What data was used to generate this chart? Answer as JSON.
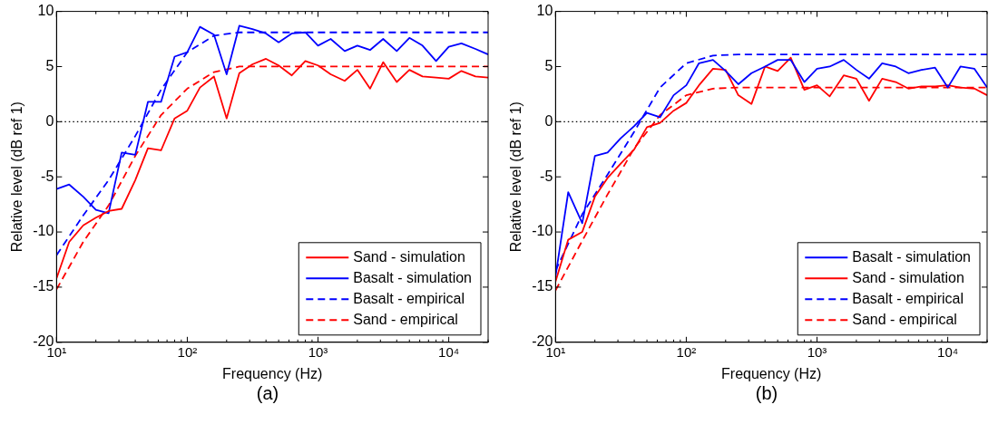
{
  "chart_data": [
    {
      "type": "line",
      "xlabel": "Frequency (Hz)",
      "ylabel": "Relative level (dB ref 1)",
      "annotations": [
        "(a)"
      ],
      "log": "x",
      "legend": "bottom right",
      "grid": false,
      "marker": "none",
      "xlim": [
        10,
        20000
      ],
      "ylim": [
        -20,
        10
      ],
      "yticks": [
        -20,
        -15,
        -10,
        -5,
        0,
        5,
        10
      ],
      "xticks": [
        {
          "value": 10,
          "label": "10¹"
        },
        {
          "value": 20,
          "label": null
        },
        {
          "value": 30,
          "label": null
        },
        {
          "value": 40,
          "label": null
        },
        {
          "value": 50,
          "label": null
        },
        {
          "value": 60,
          "label": null
        },
        {
          "value": 70,
          "label": null
        },
        {
          "value": 80,
          "label": null
        },
        {
          "value": 90,
          "label": null
        },
        {
          "value": 100,
          "label": "10²"
        },
        {
          "value": 200,
          "label": null
        },
        {
          "value": 300,
          "label": null
        },
        {
          "value": 400,
          "label": null
        },
        {
          "value": 500,
          "label": null
        },
        {
          "value": 600,
          "label": null
        },
        {
          "value": 700,
          "label": null
        },
        {
          "value": 800,
          "label": null
        },
        {
          "value": 900,
          "label": null
        },
        {
          "value": 1000,
          "label": "10³"
        },
        {
          "value": 2000,
          "label": null
        },
        {
          "value": 3000,
          "label": null
        },
        {
          "value": 4000,
          "label": null
        },
        {
          "value": 5000,
          "label": null
        },
        {
          "value": 6000,
          "label": null
        },
        {
          "value": 7000,
          "label": null
        },
        {
          "value": 8000,
          "label": null
        },
        {
          "value": 9000,
          "label": null
        },
        {
          "value": 10000,
          "label": "10⁴"
        },
        {
          "value": 20000,
          "label": null
        }
      ],
      "ref_lines": [
        {
          "axis": "y",
          "value": 0,
          "line_style": "dotted",
          "color": "#000000"
        }
      ],
      "x": [
        10,
        12.5,
        16,
        20,
        25,
        31.5,
        40,
        50,
        63,
        80,
        100,
        125,
        160,
        200,
        250,
        315,
        400,
        500,
        630,
        800,
        1000,
        1250,
        1600,
        2000,
        2500,
        3150,
        4000,
        5000,
        6300,
        8000,
        10000,
        12500,
        16000,
        20000
      ],
      "series": [
        {
          "name": "Sand - simulation",
          "color": "#ff0000",
          "line_style": "solid",
          "values": [
            -14.2,
            -10.9,
            -9.4,
            -8.7,
            -8.1,
            -7.9,
            -5.3,
            -2.4,
            -2.6,
            0.3,
            1.0,
            3.1,
            4.1,
            0.3,
            4.4,
            5.2,
            5.7,
            5.1,
            4.2,
            5.5,
            5.1,
            4.3,
            3.7,
            4.7,
            3.0,
            5.4,
            3.6,
            4.7,
            4.1,
            4.0,
            3.9,
            4.6,
            4.1,
            4.0
          ]
        },
        {
          "name": "Basalt - simulation",
          "color": "#0000ff",
          "line_style": "solid",
          "values": [
            -6.1,
            -5.7,
            -6.8,
            -8.0,
            -8.3,
            -2.8,
            -3.0,
            1.8,
            1.8,
            5.9,
            6.3,
            8.6,
            7.9,
            4.3,
            8.7,
            8.4,
            8.0,
            7.2,
            8.0,
            8.1,
            6.9,
            7.5,
            6.4,
            6.9,
            6.5,
            7.5,
            6.4,
            7.6,
            6.9,
            5.5,
            6.8,
            7.1,
            6.6,
            6.1
          ]
        },
        {
          "name": "Basalt - empirical",
          "color": "#0000ff",
          "line_style": "dashed",
          "x": [
            10,
            16,
            25,
            40,
            63,
            100,
            160,
            250,
            400,
            1000,
            20000
          ],
          "values": [
            -12.1,
            -8.5,
            -5.3,
            -1.3,
            2.9,
            6.3,
            7.8,
            8.1,
            8.1,
            8.1,
            8.1
          ]
        },
        {
          "name": "Sand - empirical",
          "color": "#ff0000",
          "line_style": "dashed",
          "x": [
            10,
            16,
            25,
            40,
            63,
            100,
            160,
            250,
            400,
            1000,
            20000
          ],
          "values": [
            -15.2,
            -10.9,
            -7.6,
            -3.1,
            0.6,
            3.0,
            4.5,
            5.0,
            5.0,
            5.0,
            5.0
          ]
        }
      ]
    },
    {
      "type": "line",
      "xlabel": "Frequency (Hz)",
      "ylabel": "Relative level (dB ref 1)",
      "annotations": [
        "(b)"
      ],
      "log": "x",
      "legend": "bottom right",
      "grid": false,
      "marker": "none",
      "xlim": [
        10,
        20000
      ],
      "ylim": [
        -20,
        10
      ],
      "yticks": [
        -20,
        -15,
        -10,
        -5,
        0,
        5,
        10
      ],
      "xticks": [
        {
          "value": 10,
          "label": "10¹"
        },
        {
          "value": 20,
          "label": null
        },
        {
          "value": 30,
          "label": null
        },
        {
          "value": 40,
          "label": null
        },
        {
          "value": 50,
          "label": null
        },
        {
          "value": 60,
          "label": null
        },
        {
          "value": 70,
          "label": null
        },
        {
          "value": 80,
          "label": null
        },
        {
          "value": 90,
          "label": null
        },
        {
          "value": 100,
          "label": "10²"
        },
        {
          "value": 200,
          "label": null
        },
        {
          "value": 300,
          "label": null
        },
        {
          "value": 400,
          "label": null
        },
        {
          "value": 500,
          "label": null
        },
        {
          "value": 600,
          "label": null
        },
        {
          "value": 700,
          "label": null
        },
        {
          "value": 800,
          "label": null
        },
        {
          "value": 900,
          "label": null
        },
        {
          "value": 1000,
          "label": "10³"
        },
        {
          "value": 2000,
          "label": null
        },
        {
          "value": 3000,
          "label": null
        },
        {
          "value": 4000,
          "label": null
        },
        {
          "value": 5000,
          "label": null
        },
        {
          "value": 6000,
          "label": null
        },
        {
          "value": 7000,
          "label": null
        },
        {
          "value": 8000,
          "label": null
        },
        {
          "value": 9000,
          "label": null
        },
        {
          "value": 10000,
          "label": "10⁴"
        },
        {
          "value": 20000,
          "label": null
        }
      ],
      "ref_lines": [
        {
          "axis": "y",
          "value": 0,
          "line_style": "dotted",
          "color": "#000000"
        }
      ],
      "x": [
        10,
        12.5,
        16,
        20,
        25,
        31.5,
        40,
        50,
        63,
        80,
        100,
        125,
        160,
        200,
        250,
        315,
        400,
        500,
        630,
        800,
        1000,
        1250,
        1600,
        2000,
        2500,
        3150,
        4000,
        5000,
        6300,
        8000,
        10000,
        12500,
        16000,
        20000
      ],
      "series": [
        {
          "name": "Basalt - simulation",
          "color": "#0000ff",
          "line_style": "solid",
          "values": [
            -14.0,
            -6.4,
            -9.2,
            -3.1,
            -2.8,
            -1.5,
            -0.4,
            0.8,
            0.4,
            2.4,
            3.3,
            5.3,
            5.6,
            4.6,
            3.4,
            4.4,
            5.0,
            5.6,
            5.6,
            3.6,
            4.8,
            5.0,
            5.6,
            4.7,
            3.9,
            5.3,
            5.0,
            4.4,
            4.7,
            4.9,
            3.1,
            5.0,
            4.8,
            3.1
          ]
        },
        {
          "name": "Sand - simulation",
          "color": "#ff0000",
          "line_style": "solid",
          "values": [
            -14.5,
            -10.7,
            -10.0,
            -6.8,
            -5.1,
            -3.8,
            -2.5,
            -0.5,
            -0.1,
            1.0,
            1.7,
            3.3,
            4.8,
            4.7,
            2.4,
            1.6,
            5.0,
            4.6,
            5.8,
            2.9,
            3.3,
            2.3,
            4.2,
            3.9,
            1.9,
            3.9,
            3.6,
            3.0,
            3.2,
            3.2,
            3.3,
            3.1,
            3.0,
            2.4
          ]
        },
        {
          "name": "Basalt - empirical",
          "color": "#0000ff",
          "line_style": "dashed",
          "x": [
            10,
            16,
            25,
            40,
            63,
            100,
            160,
            250,
            400,
            1000,
            20000
          ],
          "values": [
            -13.5,
            -8.4,
            -4.8,
            -0.9,
            3.1,
            5.3,
            6.0,
            6.1,
            6.1,
            6.1,
            6.1
          ]
        },
        {
          "name": "Sand - empirical",
          "color": "#ff0000",
          "line_style": "dashed",
          "x": [
            10,
            16,
            25,
            40,
            63,
            100,
            160,
            250,
            1000,
            20000
          ],
          "values": [
            -15.3,
            -10.8,
            -6.6,
            -2.4,
            0.6,
            2.4,
            3.0,
            3.1,
            3.1,
            3.1
          ]
        }
      ]
    }
  ]
}
